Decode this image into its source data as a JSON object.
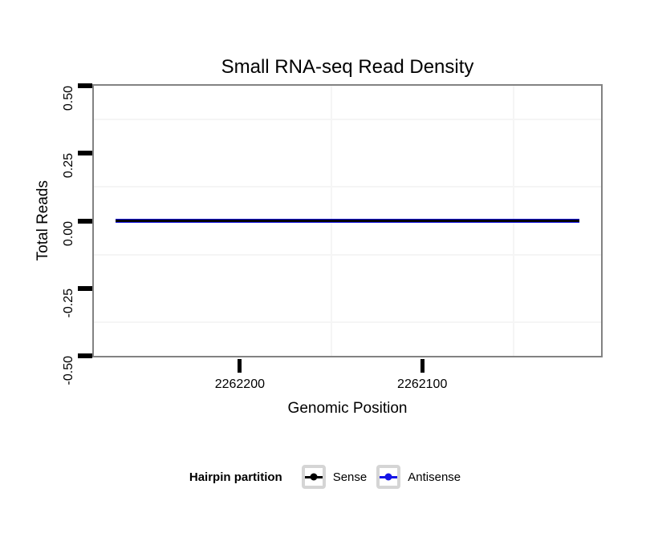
{
  "title": "Small RNA-seq Read Density",
  "axes": {
    "x": {
      "label": "Genomic Position",
      "tick_labels": [
        "2262200",
        "2262100"
      ]
    },
    "y": {
      "label": "Total Reads",
      "tick_labels": [
        "0.50",
        "0.25",
        "0.00",
        "-0.25",
        "-0.50"
      ]
    }
  },
  "legend": {
    "title": "Hairpin partition",
    "items": [
      {
        "label": "Sense",
        "color": "#000000"
      },
      {
        "label": "Antisense",
        "color": "#1414e6"
      }
    ]
  },
  "colors": {
    "panel_border": "#828282",
    "minor_grid": "#f5f5f5",
    "tick": "#000000",
    "legend_key_border": "#d5d5d5"
  },
  "chart_data": {
    "type": "line",
    "title": "Small RNA-seq Read Density",
    "xlabel": "Genomic Position",
    "ylabel": "Total Reads",
    "xlim": [
      2262280,
      2262002
    ],
    "x_axis_reversed": true,
    "ylim": [
      -0.5,
      0.5
    ],
    "x_ticks": [
      2262200,
      2262100
    ],
    "x_minor_ticks": [
      2262150,
      2262050
    ],
    "y_ticks": [
      0.5,
      0.25,
      0,
      -0.25,
      -0.5
    ],
    "y_minor_ticks": [
      0.375,
      0.125,
      -0.125,
      -0.375
    ],
    "grid": "minor-only",
    "legend_title": "Hairpin partition",
    "legend_position": "bottom",
    "series": [
      {
        "name": "Sense",
        "color": "#000000",
        "x": [
          2262268,
          2262014
        ],
        "y": [
          0,
          0
        ]
      },
      {
        "name": "Antisense",
        "color": "#1414e6",
        "x": [
          2262268,
          2262014
        ],
        "y": [
          0,
          0
        ]
      }
    ]
  }
}
